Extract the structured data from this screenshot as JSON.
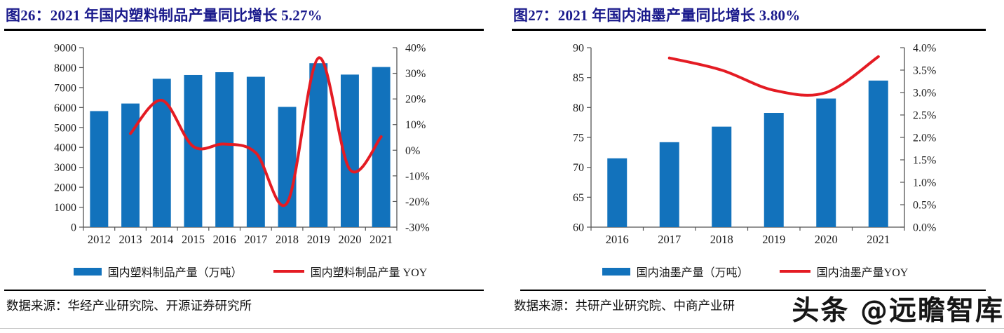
{
  "watermark": {
    "text": "头条 @远瞻智库"
  },
  "colors": {
    "bar_blue": "#1272BC",
    "line_red": "#E41B23",
    "title_navy": "#1A1A8C"
  },
  "chart_data": [
    {
      "type": "bar",
      "subtype": "bar+line dual-axis combo",
      "title": "图26：2021 年国内塑料制品产量同比增长 5.27%",
      "categories": [
        "2012",
        "2013",
        "2014",
        "2015",
        "2016",
        "2017",
        "2018",
        "2019",
        "2020",
        "2021"
      ],
      "series": [
        {
          "name": "国内塑料制品产量（万吨）",
          "type": "bar",
          "axis": "left",
          "color": "#1272BC",
          "values": [
            5820,
            6200,
            7440,
            7630,
            7770,
            7540,
            6030,
            8220,
            7650,
            8030
          ]
        },
        {
          "name": "国内塑料制品产量 YOY",
          "type": "line",
          "axis": "right",
          "color": "#E41B23",
          "values": [
            null,
            6.5,
            19.5,
            1.5,
            2.4,
            -1.0,
            -20.5,
            36.0,
            -7.5,
            5.27
          ]
        }
      ],
      "left_axis": {
        "min": 0,
        "max": 9000,
        "step": 1000,
        "format": "int"
      },
      "right_axis": {
        "min": -30,
        "max": 40,
        "step": 10,
        "format": "percent0"
      },
      "grid": false,
      "legend_position": "bottom",
      "source": "数据来源：华经产业研究院、开源证券研究所"
    },
    {
      "type": "bar",
      "subtype": "bar+line dual-axis combo",
      "title": "图27：2021 年国内油墨产量同比增长 3.80%",
      "categories": [
        "2016",
        "2017",
        "2018",
        "2019",
        "2020",
        "2021"
      ],
      "series": [
        {
          "name": "国内油墨产量（万吨）",
          "type": "bar",
          "axis": "left",
          "color": "#1272BC",
          "values": [
            71.5,
            74.2,
            76.8,
            79.1,
            81.5,
            84.5
          ]
        },
        {
          "name": "国内油墨产量YOY",
          "type": "line",
          "axis": "right",
          "color": "#E41B23",
          "values": [
            null,
            3.77,
            3.5,
            3.05,
            3.0,
            3.8
          ]
        }
      ],
      "left_axis": {
        "min": 60,
        "max": 90,
        "step": 5,
        "format": "int"
      },
      "right_axis": {
        "min": 0,
        "max": 4,
        "step": 0.5,
        "format": "percent1"
      },
      "grid": false,
      "legend_position": "bottom",
      "source": "数据来源：共研产业研究院、中商产业研"
    }
  ]
}
